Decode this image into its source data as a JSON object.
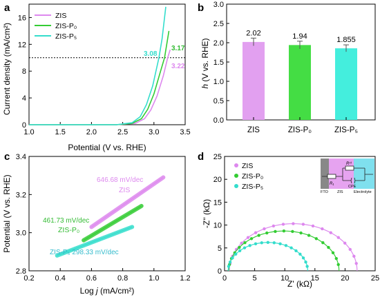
{
  "panels": {
    "a": {
      "letter": "a",
      "xlabel": "Potential (V vs. RHE)",
      "ylabel": "Current density (mA/cm²)",
      "xticks": [
        "1.0",
        "1.5",
        "2.0",
        "2.5",
        "3.0",
        "3.5"
      ],
      "yticks": [
        "0",
        "4",
        "8",
        "12",
        "16"
      ],
      "legend": [
        "ZIS",
        "ZIS-P₀",
        "ZIS-P₅"
      ],
      "annotations": [
        "3.08",
        "3.17",
        "3.22"
      ]
    },
    "b": {
      "letter": "b",
      "ylabel": "h (V vs. RHE)",
      "yticks": [
        "0.0",
        "0.5",
        "1.0",
        "1.5",
        "2.0",
        "2.5",
        "3.0"
      ],
      "categories": [
        "ZIS",
        "ZIS-P₀",
        "ZIS-P₅"
      ],
      "value_labels": [
        "2.02",
        "1.94",
        "1.855"
      ]
    },
    "c": {
      "letter": "c",
      "xlabel": "Log j (mA/cm²)",
      "ylabel": "Potential (V vs. RHE)",
      "xticks": [
        "0.2",
        "0.4",
        "0.6",
        "0.8",
        "1.0",
        "1.2"
      ],
      "yticks": [
        "2.8",
        "3.0",
        "3.2",
        "3.4"
      ],
      "slopes": [
        "646.68 mV/dec",
        "461.73 mV/dec",
        "298.33 mV/dec"
      ],
      "names": [
        "ZIS",
        "ZIS-P₀",
        "ZIS-P₅"
      ]
    },
    "d": {
      "letter": "d",
      "xlabel": "Z' (kΩ)",
      "ylabel": "-Z'' (kΩ)",
      "xticks": [
        "0",
        "5",
        "10",
        "15",
        "20",
        "25"
      ],
      "yticks": [
        "0",
        "5",
        "10",
        "15",
        "20",
        "25"
      ],
      "legend": [
        "ZIS",
        "ZIS-P₀",
        "ZIS-P₅"
      ],
      "circuit": {
        "r1": "R₁",
        "rct": "Rᶜᵗ",
        "cpe": "CPE",
        "fto": "FTO",
        "zis": "ZIS",
        "electrolyte": "Electrolyte"
      }
    }
  },
  "colors": {
    "ZIS": "#dd88ee",
    "ZIS-P0": "#33cc33",
    "ZIS-P5": "#33ddcc",
    "bar_ZIS": "#e2a0f0",
    "bar_P0": "#44dd44",
    "bar_P5": "#44eedd"
  },
  "chart_data": [
    {
      "type": "line",
      "panel": "a",
      "xlabel": "Potential (V vs. RHE)",
      "ylabel": "Current density (mA/cm²)",
      "xlim": [
        1.0,
        3.5
      ],
      "ylim": [
        0,
        18
      ],
      "reference_line_y": 10,
      "series": [
        {
          "name": "ZIS",
          "x": [
            1.0,
            2.4,
            2.7,
            2.85,
            2.95,
            3.05,
            3.15,
            3.22,
            3.26
          ],
          "y": [
            0,
            0,
            0.2,
            0.9,
            2.2,
            4.3,
            7.3,
            10,
            11.2
          ]
        },
        {
          "name": "ZIS-P₀",
          "x": [
            1.0,
            2.4,
            2.65,
            2.8,
            2.9,
            3.0,
            3.1,
            3.17,
            3.24
          ],
          "y": [
            0,
            0,
            0.2,
            0.9,
            2.3,
            4.6,
            7.8,
            10,
            14
          ]
        },
        {
          "name": "ZIS-P₅",
          "x": [
            1.0,
            2.4,
            2.65,
            2.78,
            2.88,
            2.98,
            3.08,
            3.13,
            3.19
          ],
          "y": [
            0,
            0,
            0.3,
            1.2,
            3.0,
            5.8,
            10,
            12.8,
            17.6
          ]
        }
      ],
      "annotations": [
        {
          "text": "3.08",
          "x": 3.08,
          "y": 10
        },
        {
          "text": "3.17",
          "x": 3.17,
          "y": 10
        },
        {
          "text": "3.22",
          "x": 3.22,
          "y": 10
        }
      ]
    },
    {
      "type": "bar",
      "panel": "b",
      "ylabel": "h (V vs. RHE)",
      "ylim": [
        0,
        3.0
      ],
      "categories": [
        "ZIS",
        "ZIS-P₀",
        "ZIS-P₅"
      ],
      "values": [
        2.02,
        1.94,
        1.855
      ],
      "errors": [
        0.1,
        0.1,
        0.09
      ]
    },
    {
      "type": "line",
      "panel": "c",
      "xlabel": "Log j (mA/cm²)",
      "ylabel": "Potential (V vs. RHE)",
      "xlim": [
        0.2,
        1.2
      ],
      "ylim": [
        2.8,
        3.4
      ],
      "series": [
        {
          "name": "ZIS",
          "slope_label": "646.68 mV/dec",
          "x": [
            0.6,
            1.06
          ],
          "y": [
            3.03,
            3.29
          ]
        },
        {
          "name": "ZIS-P₀",
          "slope_label": "461.73 mV/dec",
          "x": [
            0.55,
            0.92
          ],
          "y": [
            2.96,
            3.14
          ]
        },
        {
          "name": "ZIS-P₅",
          "slope_label": "298.33 mV/dec",
          "x": [
            0.38,
            0.86
          ],
          "y": [
            2.88,
            3.03
          ]
        }
      ]
    },
    {
      "type": "scatter",
      "panel": "d",
      "xlabel": "Z' (kΩ)",
      "ylabel": "-Z'' (kΩ)",
      "xlim": [
        0,
        25
      ],
      "ylim": [
        0,
        25
      ],
      "series": [
        {
          "name": "ZIS",
          "x0": 0.8,
          "x1": 22.0,
          "peak": 10.3
        },
        {
          "name": "ZIS-P₀",
          "x0": 0.7,
          "x1": 19.0,
          "peak": 8.7
        },
        {
          "name": "ZIS-P₅",
          "x0": 0.6,
          "x1": 13.8,
          "peak": 6.2
        }
      ]
    }
  ]
}
